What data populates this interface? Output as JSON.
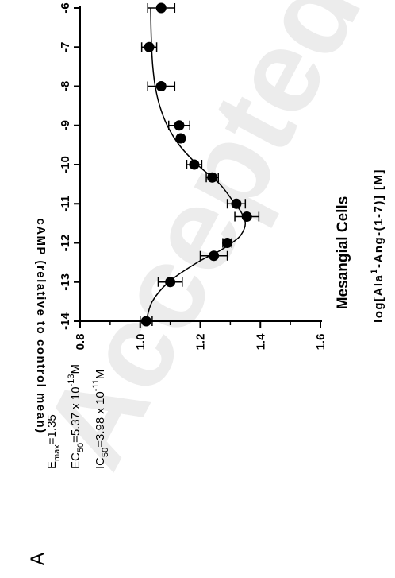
{
  "panel_label": "A",
  "watermark": "Accepted",
  "chart_data": {
    "type": "scatter",
    "title": "Mesangial Cells",
    "xlabel": {
      "main": "log[Ala",
      "sup": "1",
      "rest": "-Ang-(1-7)] [M]"
    },
    "ylabel": "cAMP (relative to control mean)",
    "xlim": [
      -14,
      -6
    ],
    "ylim": [
      0.8,
      1.6
    ],
    "x_ticks": [
      "-14",
      "-13",
      "-12",
      "-11",
      "-10",
      "-9",
      "-8",
      "-7",
      "-6"
    ],
    "y_ticks": [
      "0.8",
      "1.0",
      "1.2",
      "1.4",
      "1.6"
    ],
    "grid": false,
    "annotations": [
      {
        "main": "E",
        "sub": "max",
        "rest": "=1.35"
      },
      {
        "main": "EC",
        "sub": "50",
        "rest": "=5.37 x 10",
        "sup": "-13",
        "unit": "M"
      },
      {
        "main": "IC",
        "sub": "50",
        "rest": "=3.98 x 10",
        "sup": "-11",
        "unit": "M"
      }
    ],
    "series": [
      {
        "x": [
          -14,
          -13,
          -12.33,
          -12,
          -11.33,
          -11,
          -10.33,
          -10,
          -9.33,
          -9,
          -8,
          -7,
          -6
        ],
        "y": [
          1.02,
          1.1,
          1.245,
          1.29,
          1.355,
          1.32,
          1.24,
          1.18,
          1.135,
          1.13,
          1.07,
          1.03,
          1.07
        ],
        "err": [
          0.02,
          0.04,
          0.045,
          0.015,
          0.04,
          0.03,
          0.02,
          0.025,
          0.01,
          0.035,
          0.045,
          0.025,
          0.045
        ]
      }
    ],
    "fit_curve": {
      "x": [
        -14,
        -13.5,
        -13,
        -12.5,
        -12.2,
        -12,
        -11.8,
        -11.5,
        -11.2,
        -11,
        -10.5,
        -10,
        -9.5,
        -9,
        -8.5,
        -8,
        -7.5,
        -7,
        -6.5,
        -6
      ],
      "y": [
        1.02,
        1.04,
        1.095,
        1.19,
        1.265,
        1.305,
        1.335,
        1.35,
        1.335,
        1.315,
        1.265,
        1.19,
        1.13,
        1.09,
        1.065,
        1.05,
        1.042,
        1.038,
        1.036,
        1.035
      ]
    }
  }
}
